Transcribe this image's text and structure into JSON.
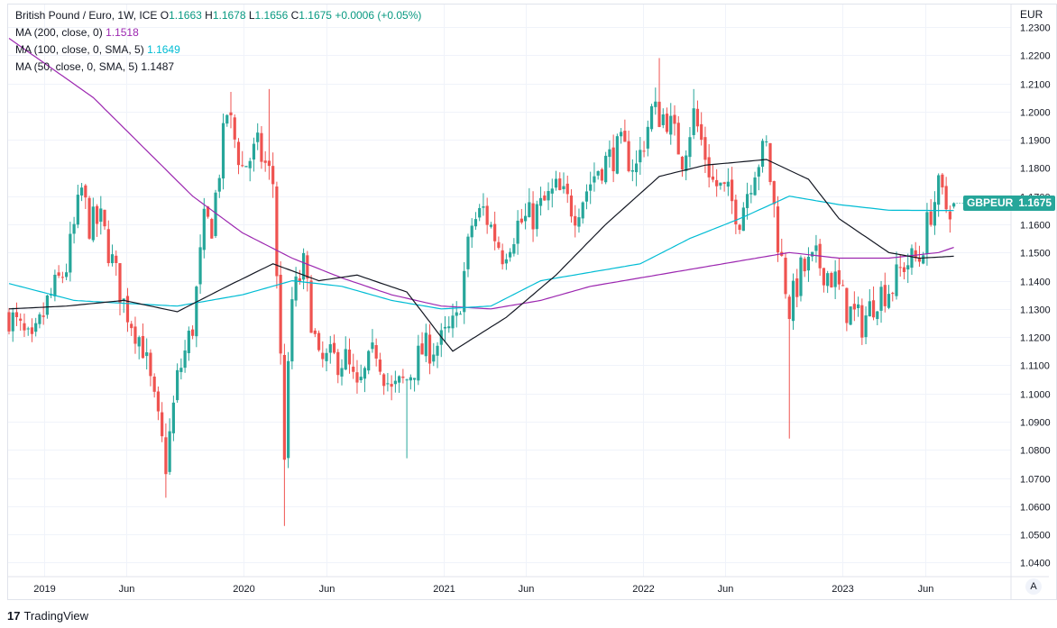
{
  "legend": {
    "symbol": "British Pound / Euro, 1W, ICE",
    "open_label": "O",
    "open": "1.1663",
    "high_label": "H",
    "high": "1.1678",
    "low_label": "L",
    "low": "1.1656",
    "close_label": "C",
    "close": "1.1675",
    "change": "+0.0006 (+0.05%)",
    "ma200_label": "MA (200, close, 0)",
    "ma200_value": "1.1518",
    "ma100_label": "MA (100, close, 0, SMA, 5)",
    "ma100_value": "1.1649",
    "ma50_label": "MA (50, close, 0, SMA, 5)",
    "ma50_value": "1.1487"
  },
  "currency": "EUR",
  "price_badge": {
    "ticker": "GBPEUR",
    "price": "1.1675"
  },
  "auto_button": "A",
  "brand": {
    "logo": "17",
    "name": "TradingView"
  },
  "colors": {
    "up": "#26a69a",
    "down": "#ef5350",
    "ma200": "#9c27b0",
    "ma100": "#00bcd4",
    "ma50": "#131722"
  },
  "chart_data": {
    "type": "candlestick",
    "timeframe": "1W",
    "y_axis": {
      "min": 1.035,
      "max": 1.238,
      "ticks": [
        "1.0400",
        "1.0500",
        "1.0600",
        "1.0700",
        "1.0800",
        "1.0900",
        "1.1000",
        "1.1100",
        "1.1200",
        "1.1300",
        "1.1400",
        "1.1500",
        "1.1600",
        "1.1700",
        "1.1800",
        "1.1900",
        "1.2000",
        "1.2100",
        "1.2200",
        "1.2300"
      ]
    },
    "x_axis": {
      "start": "2018-10-29",
      "end": "2023-10-30",
      "ticks": [
        {
          "label": "2019",
          "date": "2019-01-01"
        },
        {
          "label": "Jun",
          "date": "2019-06-01"
        },
        {
          "label": "2020",
          "date": "2020-01-01"
        },
        {
          "label": "Jun",
          "date": "2020-06-01"
        },
        {
          "label": "2021",
          "date": "2021-01-01"
        },
        {
          "label": "Jun",
          "date": "2021-06-01"
        },
        {
          "label": "2022",
          "date": "2022-01-01"
        },
        {
          "label": "Jun",
          "date": "2022-06-01"
        },
        {
          "label": "2023",
          "date": "2023-01-01"
        },
        {
          "label": "Jun",
          "date": "2023-06-01"
        }
      ]
    },
    "close_anchors": [
      [
        "2018-10-29",
        1.128
      ],
      [
        "2018-12-10",
        1.116
      ],
      [
        "2019-01-07",
        1.132
      ],
      [
        "2019-02-11",
        1.145
      ],
      [
        "2019-03-11",
        1.172
      ],
      [
        "2019-03-25",
        1.16
      ],
      [
        "2019-04-15",
        1.161
      ],
      [
        "2019-05-27",
        1.132
      ],
      [
        "2019-07-01",
        1.117
      ],
      [
        "2019-08-12",
        1.075
      ],
      [
        "2019-09-02",
        1.105
      ],
      [
        "2019-09-30",
        1.124
      ],
      [
        "2019-10-21",
        1.16
      ],
      [
        "2019-11-04",
        1.16
      ],
      [
        "2019-12-02",
        1.2
      ],
      [
        "2019-12-30",
        1.18
      ],
      [
        "2020-01-27",
        1.187
      ],
      [
        "2020-02-24",
        1.175
      ],
      [
        "2020-03-16",
        1.08
      ],
      [
        "2020-03-30",
        1.133
      ],
      [
        "2020-04-20",
        1.145
      ],
      [
        "2020-05-18",
        1.11
      ],
      [
        "2020-06-08",
        1.112
      ],
      [
        "2020-07-06",
        1.112
      ],
      [
        "2020-07-27",
        1.1
      ],
      [
        "2020-08-31",
        1.116
      ],
      [
        "2020-09-28",
        1.1
      ],
      [
        "2020-10-26",
        1.105
      ],
      [
        "2020-11-23",
        1.115
      ],
      [
        "2020-12-28",
        1.118
      ],
      [
        "2021-01-25",
        1.125
      ],
      [
        "2021-02-22",
        1.16
      ],
      [
        "2021-03-15",
        1.165
      ],
      [
        "2021-04-19",
        1.15
      ],
      [
        "2021-05-17",
        1.16
      ],
      [
        "2021-06-14",
        1.163
      ],
      [
        "2021-07-26",
        1.172
      ],
      [
        "2021-08-30",
        1.165
      ],
      [
        "2021-10-11",
        1.18
      ],
      [
        "2021-11-22",
        1.187
      ],
      [
        "2021-12-20",
        1.18
      ],
      [
        "2022-01-17",
        1.2
      ],
      [
        "2022-02-14",
        1.198
      ],
      [
        "2022-03-14",
        1.184
      ],
      [
        "2022-04-04",
        1.199
      ],
      [
        "2022-05-09",
        1.175
      ],
      [
        "2022-06-06",
        1.17
      ],
      [
        "2022-06-27",
        1.163
      ],
      [
        "2022-07-25",
        1.181
      ],
      [
        "2022-08-15",
        1.187
      ],
      [
        "2022-09-05",
        1.155
      ],
      [
        "2022-09-26",
        1.13
      ],
      [
        "2022-10-17",
        1.143
      ],
      [
        "2022-11-14",
        1.147
      ],
      [
        "2022-12-19",
        1.14
      ],
      [
        "2023-01-09",
        1.13
      ],
      [
        "2023-02-06",
        1.125
      ],
      [
        "2023-03-06",
        1.135
      ],
      [
        "2023-04-03",
        1.138
      ],
      [
        "2023-04-24",
        1.146
      ],
      [
        "2023-05-22",
        1.148
      ],
      [
        "2023-06-12",
        1.165
      ],
      [
        "2023-06-26",
        1.172
      ],
      [
        "2023-07-10",
        1.166
      ],
      [
        "2023-07-24",
        1.1675
      ]
    ],
    "wick_extremes": [
      [
        "2019-08-12",
        1.063
      ],
      [
        "2020-03-16",
        1.053
      ],
      [
        "2022-09-26",
        1.084
      ],
      [
        "2020-10-26",
        1.077
      ],
      [
        "2021-12-27",
        1.191
      ],
      [
        "2022-04-04",
        1.208
      ],
      [
        "2022-01-31",
        1.219
      ],
      [
        "2020-02-17",
        1.208
      ],
      [
        "2019-12-09",
        1.207
      ]
    ],
    "last": {
      "open": 1.1663,
      "high": 1.1678,
      "low": 1.1656,
      "close": 1.1675
    },
    "series": [
      {
        "name": "MA (200, close, 0)",
        "value": 1.1518,
        "anchors": [
          [
            "2018-10-29",
            1.226
          ],
          [
            "2019-04-01",
            1.205
          ],
          [
            "2019-09-30",
            1.17
          ],
          [
            "2019-12-30",
            1.157
          ],
          [
            "2020-03-30",
            1.148
          ],
          [
            "2020-06-29",
            1.141
          ],
          [
            "2020-09-28",
            1.135
          ],
          [
            "2020-12-28",
            1.131
          ],
          [
            "2021-03-29",
            1.13
          ],
          [
            "2021-06-28",
            1.133
          ],
          [
            "2021-09-27",
            1.138
          ],
          [
            "2021-12-27",
            1.141
          ],
          [
            "2022-03-28",
            1.144
          ],
          [
            "2022-06-27",
            1.147
          ],
          [
            "2022-09-26",
            1.15
          ],
          [
            "2022-12-26",
            1.148
          ],
          [
            "2023-03-27",
            1.148
          ],
          [
            "2023-06-26",
            1.15
          ],
          [
            "2023-07-24",
            1.1518
          ]
        ]
      },
      {
        "name": "MA (100, close, 0, SMA, 5)",
        "value": 1.1649,
        "anchors": [
          [
            "2018-10-29",
            1.139
          ],
          [
            "2019-02-25",
            1.133
          ],
          [
            "2019-05-27",
            1.132
          ],
          [
            "2019-09-02",
            1.131
          ],
          [
            "2019-12-30",
            1.135
          ],
          [
            "2020-03-30",
            1.14
          ],
          [
            "2020-06-29",
            1.138
          ],
          [
            "2020-09-28",
            1.133
          ],
          [
            "2020-12-28",
            1.13
          ],
          [
            "2021-03-29",
            1.131
          ],
          [
            "2021-06-28",
            1.14
          ],
          [
            "2021-09-27",
            1.143
          ],
          [
            "2021-12-27",
            1.146
          ],
          [
            "2022-03-28",
            1.155
          ],
          [
            "2022-06-27",
            1.162
          ],
          [
            "2022-09-26",
            1.17
          ],
          [
            "2022-12-26",
            1.167
          ],
          [
            "2023-03-27",
            1.165
          ],
          [
            "2023-07-24",
            1.1649
          ]
        ]
      },
      {
        "name": "MA (50, close, 0, SMA, 5)",
        "value": 1.1487,
        "anchors": [
          [
            "2018-10-29",
            1.13
          ],
          [
            "2019-02-11",
            1.131
          ],
          [
            "2019-05-27",
            1.133
          ],
          [
            "2019-09-02",
            1.129
          ],
          [
            "2019-12-02",
            1.138
          ],
          [
            "2020-02-24",
            1.146
          ],
          [
            "2020-05-18",
            1.14
          ],
          [
            "2020-07-27",
            1.142
          ],
          [
            "2020-10-26",
            1.136
          ],
          [
            "2020-12-28",
            1.12
          ],
          [
            "2021-01-18",
            1.115
          ],
          [
            "2021-04-26",
            1.127
          ],
          [
            "2021-07-26",
            1.142
          ],
          [
            "2021-10-25",
            1.16
          ],
          [
            "2022-01-31",
            1.177
          ],
          [
            "2022-04-25",
            1.181
          ],
          [
            "2022-08-15",
            1.183
          ],
          [
            "2022-10-31",
            1.176
          ],
          [
            "2022-12-26",
            1.162
          ],
          [
            "2023-03-27",
            1.15
          ],
          [
            "2023-05-22",
            1.148
          ],
          [
            "2023-07-24",
            1.1487
          ]
        ]
      }
    ]
  }
}
